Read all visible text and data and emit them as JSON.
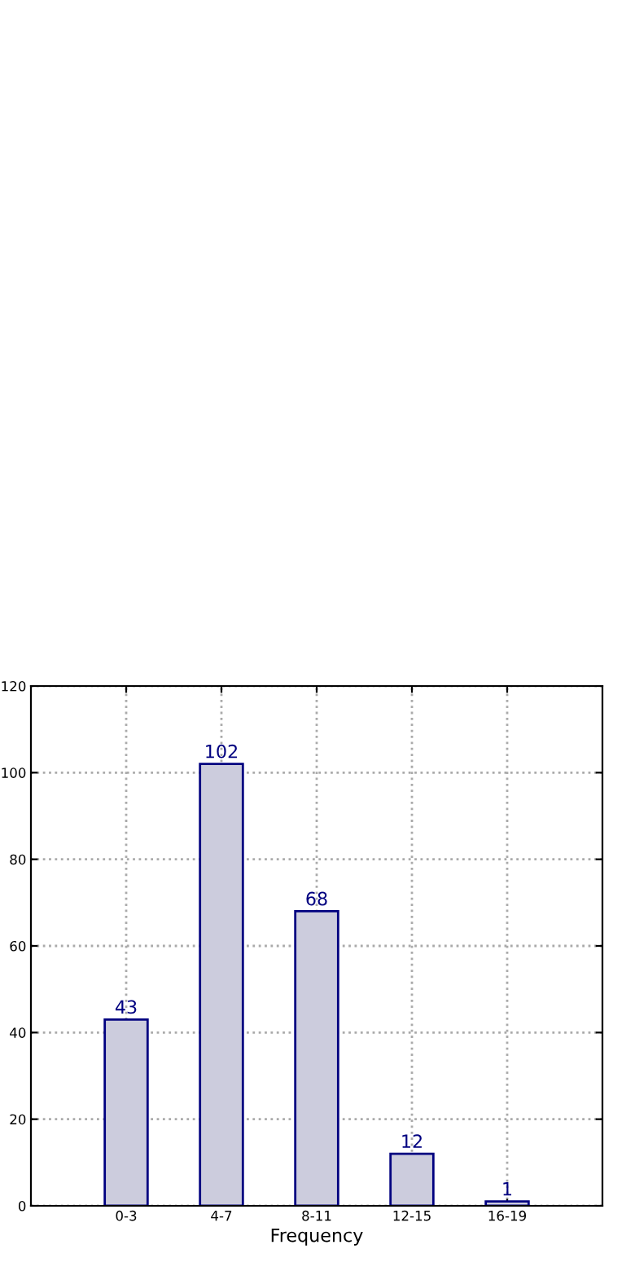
{
  "chart_data": {
    "type": "bar",
    "xlabel": "Frequency",
    "categories": [
      "0-3",
      "4-7",
      "8-11",
      "12-15",
      "16-19"
    ],
    "values": [
      43,
      102,
      68,
      12,
      1
    ],
    "color": "#ccccdd",
    "ylim": [
      0,
      120
    ],
    "yticks": [
      0,
      20,
      40,
      60,
      80,
      100,
      120
    ],
    "grid": true,
    "data_labels": true
  }
}
